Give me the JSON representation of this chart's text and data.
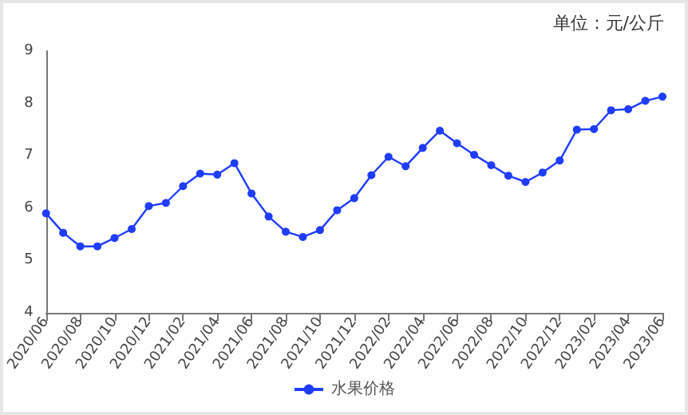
{
  "chart_data": {
    "type": "line",
    "annotations": [
      "单位：元/公斤"
    ],
    "categories": [
      "2020/06",
      null,
      "2020/08",
      null,
      "2020/10",
      null,
      "2020/12",
      null,
      "2021/02",
      null,
      "2021/04",
      null,
      "2021/06",
      null,
      "2021/08",
      null,
      "2021/10",
      null,
      "2021/12",
      null,
      "2022/02",
      null,
      "2022/04",
      null,
      "2022/06",
      null,
      "2022/08",
      null,
      "2022/10",
      null,
      "2022/12",
      null,
      "2023/02",
      null,
      "2023/04",
      null,
      "2023/06"
    ],
    "series": [
      {
        "name": "水果价格",
        "color": "#1f3cff",
        "values": [
          5.9,
          5.53,
          5.27,
          5.27,
          5.43,
          5.6,
          6.04,
          6.1,
          6.42,
          6.66,
          6.64,
          6.86,
          6.28,
          5.84,
          5.55,
          5.45,
          5.58,
          5.96,
          6.19,
          6.63,
          6.98,
          6.8,
          7.15,
          7.48,
          7.24,
          7.02,
          6.82,
          6.62,
          6.5,
          6.68,
          6.91,
          7.5,
          7.51,
          7.87,
          7.89,
          8.05,
          8.13
        ]
      }
    ],
    "ylim": [
      4,
      9
    ],
    "yticks": [
      4,
      5,
      6,
      7,
      8,
      9
    ],
    "grid": false,
    "legend": "bottom",
    "marker": "circle",
    "line_style": "solid"
  }
}
